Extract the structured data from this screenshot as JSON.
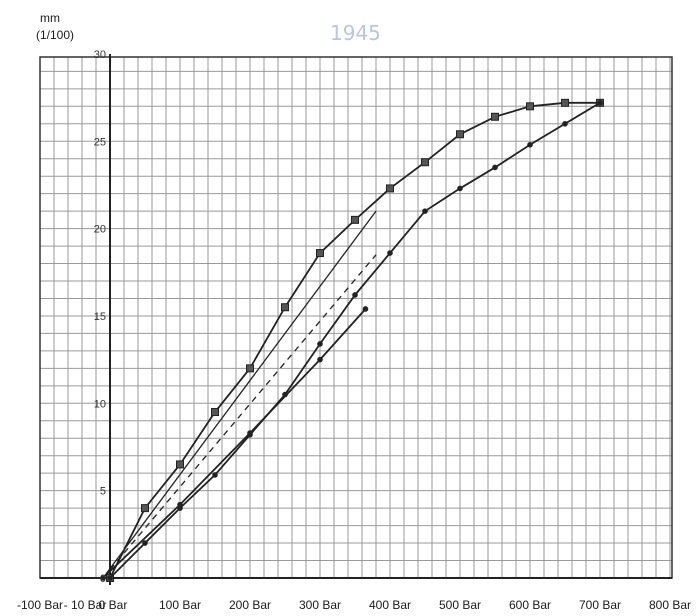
{
  "chart_data": {
    "type": "line",
    "y_unit_label": [
      "mm",
      "(1/100)"
    ],
    "x_ticks": [
      {
        "label": "-100 Bar",
        "v": -100
      },
      {
        "label": "- 10 Bar",
        "v": -10
      },
      {
        "label": "0 Bar",
        "v": 0
      },
      {
        "label": "100 Bar",
        "v": 100
      },
      {
        "label": "200 Bar",
        "v": 200
      },
      {
        "label": "300 Bar",
        "v": 300
      },
      {
        "label": "400 Bar",
        "v": 400
      },
      {
        "label": "500 Bar",
        "v": 500
      },
      {
        "label": "600 Bar",
        "v": 600
      },
      {
        "label": "700 Bar",
        "v": 700
      },
      {
        "label": "800 Bar",
        "v": 800
      }
    ],
    "y_ticks": [
      {
        "label": "30",
        "v": 30
      },
      {
        "label": "25",
        "v": 25
      },
      {
        "label": "20",
        "v": 20
      },
      {
        "label": "15",
        "v": 15
      },
      {
        "label": "10",
        "v": 10
      },
      {
        "label": "5",
        "v": 5
      },
      {
        "label": "0",
        "v": 0
      }
    ],
    "xlim": [
      -100,
      800
    ],
    "ylim": [
      -2,
      30
    ],
    "grid": true,
    "series": [
      {
        "marker": "square",
        "dash": false,
        "x": [
          0,
          50,
          100,
          150,
          200,
          250,
          300,
          350,
          400,
          450,
          500,
          550,
          600,
          650,
          700
        ],
        "y": [
          0,
          4,
          6.5,
          9.5,
          12,
          15.5,
          18.6,
          20.5,
          22.3,
          23.8,
          25.4,
          26.4,
          27,
          27.2,
          27.2
        ]
      },
      {
        "marker": "dot",
        "dash": false,
        "x": [
          0,
          50,
          100,
          150,
          200,
          250,
          300,
          350,
          400,
          450,
          500,
          550,
          600,
          650,
          700
        ],
        "y": [
          0,
          2,
          4,
          5.9,
          8.2,
          10.5,
          13.4,
          16.2,
          18.6,
          21,
          22.3,
          23.5,
          24.8,
          26,
          27.2
        ]
      },
      {
        "marker": "dot",
        "dash": false,
        "x": [
          -10,
          100,
          200,
          300,
          365
        ],
        "y": [
          0,
          4.2,
          8.3,
          12.5,
          15.4
        ]
      },
      {
        "marker": "none",
        "dash": false,
        "x": [
          -10,
          380
        ],
        "y": [
          0,
          21
        ]
      },
      {
        "marker": "none",
        "dash": true,
        "x": [
          -10,
          380
        ],
        "y": [
          0,
          18.5
        ]
      }
    ],
    "watermark": "1945"
  }
}
